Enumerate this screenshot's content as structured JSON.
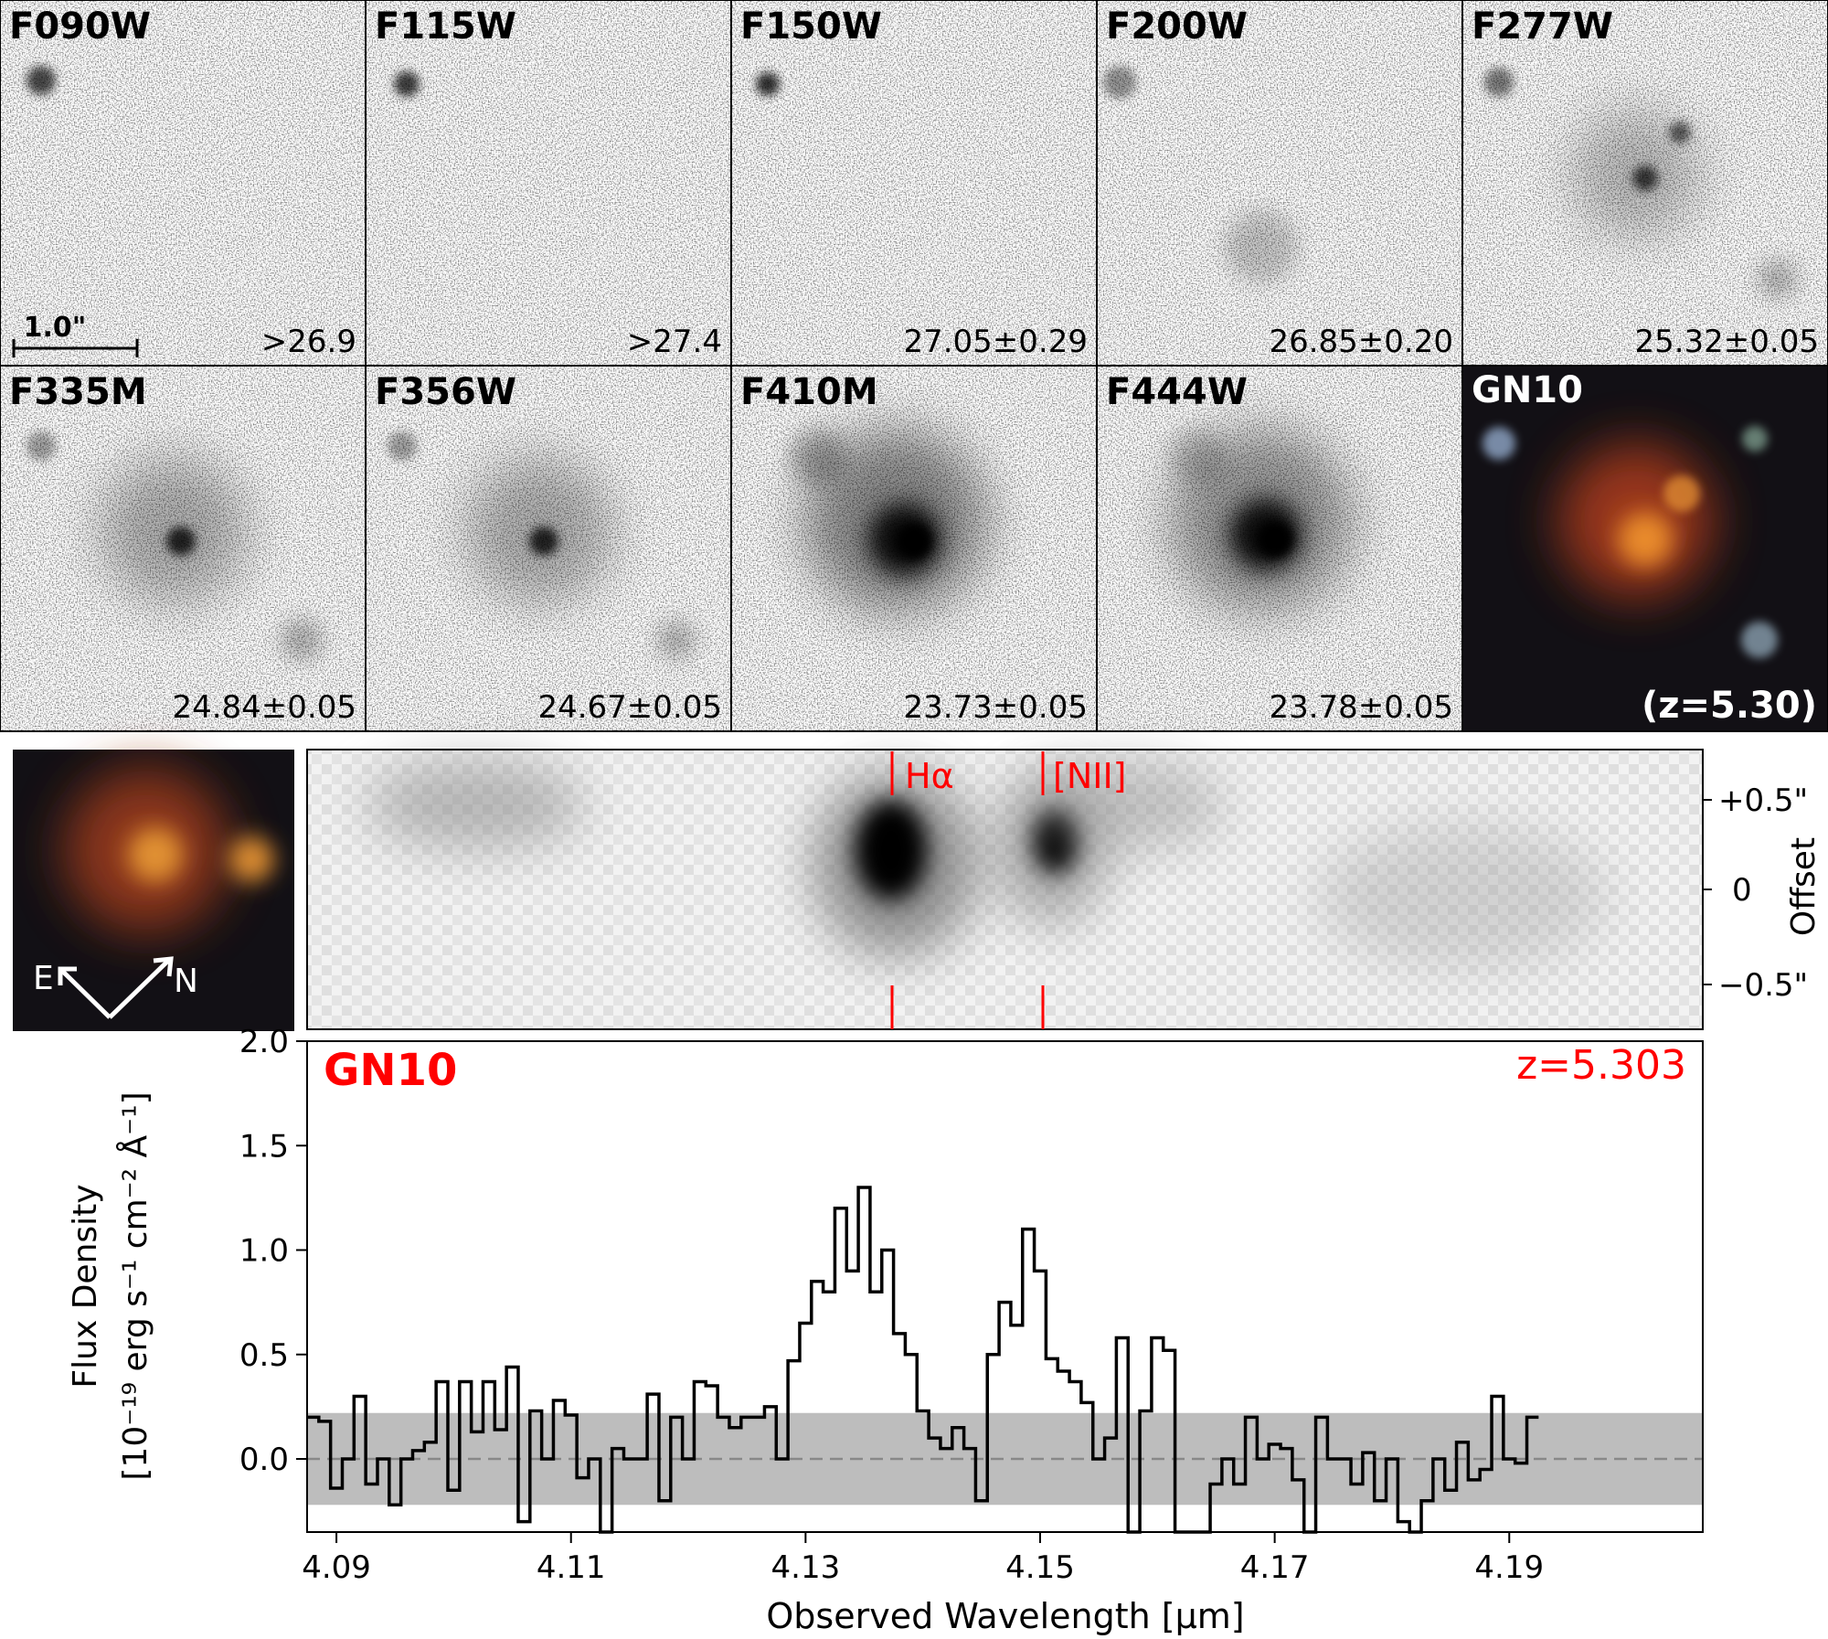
{
  "thumbnails": [
    {
      "band": "F090W",
      "mag": ">26.9"
    },
    {
      "band": "F115W",
      "mag": ">27.4"
    },
    {
      "band": "F150W",
      "mag": "27.05±0.29"
    },
    {
      "band": "F200W",
      "mag": "26.85±0.20"
    },
    {
      "band": "F277W",
      "mag": "25.32±0.05"
    },
    {
      "band": "F335M",
      "mag": "24.84±0.05"
    },
    {
      "band": "F356W",
      "mag": "24.67±0.05"
    },
    {
      "band": "F410M",
      "mag": "23.73±0.05"
    },
    {
      "band": "F444W",
      "mag": "23.78±0.05"
    }
  ],
  "color_panel": {
    "label": "GN10",
    "redshift": "(z=5.30)"
  },
  "scale_bar": "1.0\"",
  "compass": {
    "east": "E",
    "north": "N"
  },
  "spectrum2d": {
    "lines": [
      "Hα",
      "[NII]"
    ],
    "offset_label": "Offset",
    "offset_ticks": [
      "+0.5\"",
      "0",
      "−0.5\""
    ]
  },
  "chart_data": {
    "type": "line",
    "title": "GN10",
    "annotation": "z=5.303",
    "xlabel": "Observed Wavelength [μm]",
    "ylabel_line1": "Flux Density",
    "ylabel_line2": "[10⁻¹⁹ erg s⁻¹ cm⁻² Å⁻¹]",
    "xlim": [
      4.0875,
      4.2065
    ],
    "ylim": [
      -0.35,
      2.0
    ],
    "xticks": [
      4.09,
      4.11,
      4.13,
      4.15,
      4.17,
      4.19
    ],
    "xtick_labels": [
      "4.09",
      "4.11",
      "4.13",
      "4.15",
      "4.17",
      "4.19"
    ],
    "yticks": [
      0.0,
      0.5,
      1.0,
      1.5,
      2.0
    ],
    "ytick_labels": [
      "0.0",
      "0.5",
      "1.0",
      "1.5",
      "2.0"
    ],
    "zero_line": 0.0,
    "x_start": 4.0875,
    "bin_width": 0.001,
    "flux": [
      0.2,
      0.18,
      -0.14,
      0.0,
      0.3,
      -0.12,
      0.0,
      -0.22,
      0.0,
      0.04,
      0.08,
      0.37,
      -0.15,
      0.37,
      0.13,
      0.37,
      0.14,
      0.44,
      -0.3,
      0.23,
      0.0,
      0.28,
      0.21,
      -0.09,
      0.0,
      -0.4,
      0.05,
      0.0,
      0.0,
      0.31,
      -0.2,
      0.2,
      0.0,
      0.37,
      0.35,
      0.2,
      0.15,
      0.2,
      0.2,
      0.25,
      0.0,
      0.47,
      0.65,
      0.85,
      0.8,
      1.2,
      0.9,
      1.3,
      0.8,
      1.0,
      0.6,
      0.5,
      0.23,
      0.1,
      0.05,
      0.15,
      0.05,
      -0.2,
      0.5,
      0.75,
      0.64,
      1.1,
      0.9,
      0.48,
      0.42,
      0.37,
      0.27,
      0.0,
      0.1,
      0.58,
      -0.4,
      0.23,
      0.58,
      0.52,
      -0.35,
      -0.5,
      -0.35,
      -0.12,
      0.0,
      -0.12,
      0.2,
      0.0,
      0.07,
      0.05,
      -0.1,
      -0.35,
      0.2,
      0.0,
      0.0,
      -0.12,
      0.03,
      -0.2,
      0.0,
      -0.3,
      -0.45,
      -0.2,
      0.0,
      -0.15,
      0.08,
      -0.1,
      -0.05,
      0.3,
      0.0,
      -0.02,
      0.2
    ]
  }
}
